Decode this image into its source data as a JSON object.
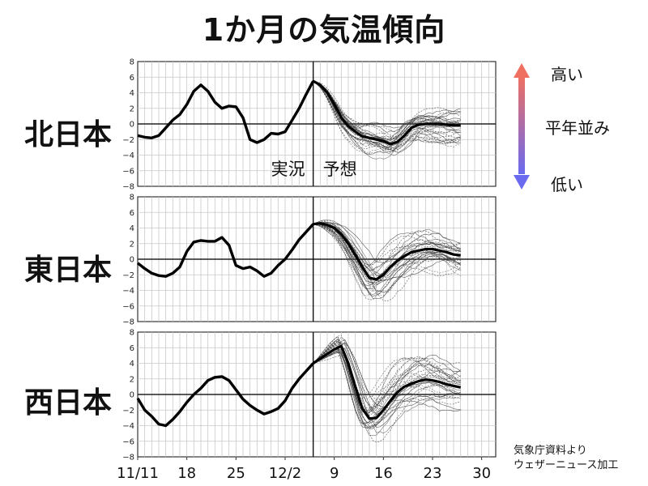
{
  "title": "1か月の気温傾向",
  "source_lines": [
    "気象庁資料より",
    "ウェザーニュース加工"
  ],
  "legend": {
    "high": "高い",
    "normal": "平年並み",
    "low": "低い",
    "gradient_top": "#f07060",
    "gradient_bottom": "#6a6af0"
  },
  "chart_data": {
    "type": "line",
    "x_days": [
      0,
      34
    ],
    "x_tick_days": [
      0,
      7,
      14,
      21,
      28,
      35,
      42,
      49
    ],
    "x_ticks": [
      "11/11",
      "18",
      "25",
      "12/2",
      "9",
      "16",
      "23",
      "30"
    ],
    "ylim": [
      -8,
      8
    ],
    "y_ticks": [
      "8",
      "6",
      "4",
      "2",
      "0",
      "−2",
      "−4",
      "−6",
      "−8"
    ],
    "forecast_start_day": 25,
    "annotations": {
      "observed": "実況",
      "forecast": "予想"
    },
    "panels": [
      {
        "region": "北日本",
        "ensemble_spread": 1.5,
        "observed": [
          [
            0,
            -1.5
          ],
          [
            1,
            -1.7
          ],
          [
            2,
            -1.8
          ],
          [
            3,
            -1.5
          ],
          [
            4,
            -0.5
          ],
          [
            5,
            0.5
          ],
          [
            6,
            1.2
          ],
          [
            7,
            2.5
          ],
          [
            8,
            4.2
          ],
          [
            9,
            5
          ],
          [
            10,
            4.2
          ],
          [
            11,
            2.8
          ],
          [
            12,
            2
          ],
          [
            13,
            2.3
          ],
          [
            14,
            2.2
          ],
          [
            15,
            0.8
          ],
          [
            16,
            -2
          ],
          [
            17,
            -2.4
          ],
          [
            18,
            -2
          ],
          [
            19,
            -1.2
          ],
          [
            20,
            -1.3
          ],
          [
            21,
            -1
          ],
          [
            22,
            0.5
          ],
          [
            23,
            2
          ],
          [
            24,
            3.8
          ],
          [
            25,
            5.5
          ]
        ],
        "forecast": [
          [
            25,
            5.5
          ],
          [
            26,
            5
          ],
          [
            27,
            4
          ],
          [
            28,
            2.5
          ],
          [
            29,
            0.8
          ],
          [
            30,
            -0.3
          ],
          [
            31,
            -1
          ],
          [
            32,
            -1.6
          ],
          [
            33,
            -1.8
          ],
          [
            34,
            -2
          ],
          [
            35,
            -2.2
          ],
          [
            36,
            -2.6
          ],
          [
            37,
            -2.3
          ],
          [
            38,
            -1.5
          ],
          [
            39,
            -0.5
          ],
          [
            40,
            -0.1
          ],
          [
            41,
            0
          ],
          [
            42,
            0
          ],
          [
            43,
            0
          ],
          [
            44,
            -0.1
          ],
          [
            45,
            -0.2
          ],
          [
            46,
            -0.2
          ]
        ]
      },
      {
        "region": "東日本",
        "ensemble_spread": 1.8,
        "observed": [
          [
            0,
            -0.5
          ],
          [
            1,
            -1.2
          ],
          [
            2,
            -1.8
          ],
          [
            3,
            -2.1
          ],
          [
            4,
            -2.2
          ],
          [
            5,
            -1.8
          ],
          [
            6,
            -1
          ],
          [
            7,
            1
          ],
          [
            8,
            2.2
          ],
          [
            9,
            2.4
          ],
          [
            10,
            2.3
          ],
          [
            11,
            2.3
          ],
          [
            12,
            2.8
          ],
          [
            13,
            1.8
          ],
          [
            14,
            -0.8
          ],
          [
            15,
            -1.2
          ],
          [
            16,
            -1
          ],
          [
            17,
            -1.5
          ],
          [
            18,
            -2.2
          ],
          [
            19,
            -1.8
          ],
          [
            20,
            -0.8
          ],
          [
            21,
            0
          ],
          [
            22,
            1.2
          ],
          [
            23,
            2.5
          ],
          [
            24,
            3.5
          ],
          [
            25,
            4.5
          ]
        ],
        "forecast": [
          [
            25,
            4.5
          ],
          [
            26,
            4.6
          ],
          [
            27,
            4.4
          ],
          [
            28,
            4
          ],
          [
            29,
            3.2
          ],
          [
            30,
            2
          ],
          [
            31,
            0.5
          ],
          [
            32,
            -1
          ],
          [
            33,
            -2.4
          ],
          [
            34,
            -2.6
          ],
          [
            35,
            -2
          ],
          [
            36,
            -1
          ],
          [
            37,
            -0.2
          ],
          [
            38,
            0.4
          ],
          [
            39,
            0.9
          ],
          [
            40,
            1.1
          ],
          [
            41,
            1.3
          ],
          [
            42,
            1.3
          ],
          [
            43,
            1.1
          ],
          [
            44,
            0.9
          ],
          [
            45,
            0.6
          ],
          [
            46,
            0.5
          ]
        ]
      },
      {
        "region": "西日本",
        "ensemble_spread": 2.0,
        "observed": [
          [
            0,
            -0.5
          ],
          [
            1,
            -2
          ],
          [
            2,
            -2.8
          ],
          [
            3,
            -3.8
          ],
          [
            4,
            -4
          ],
          [
            5,
            -3.2
          ],
          [
            6,
            -2.2
          ],
          [
            7,
            -1
          ],
          [
            8,
            0
          ],
          [
            9,
            0.8
          ],
          [
            10,
            1.8
          ],
          [
            11,
            2.2
          ],
          [
            12,
            2.3
          ],
          [
            13,
            1.8
          ],
          [
            14,
            0.6
          ],
          [
            15,
            -0.6
          ],
          [
            16,
            -1.4
          ],
          [
            17,
            -2
          ],
          [
            18,
            -2.5
          ],
          [
            19,
            -2.2
          ],
          [
            20,
            -1.8
          ],
          [
            21,
            -0.8
          ],
          [
            22,
            0.8
          ],
          [
            23,
            2
          ],
          [
            24,
            3
          ],
          [
            25,
            4
          ]
        ],
        "forecast": [
          [
            25,
            4
          ],
          [
            26,
            4.6
          ],
          [
            27,
            5.2
          ],
          [
            28,
            5.8
          ],
          [
            29,
            6.2
          ],
          [
            30,
            4
          ],
          [
            31,
            1
          ],
          [
            32,
            -1.8
          ],
          [
            33,
            -3.1
          ],
          [
            34,
            -3
          ],
          [
            35,
            -2
          ],
          [
            36,
            -0.8
          ],
          [
            37,
            0.3
          ],
          [
            38,
            1
          ],
          [
            39,
            1.4
          ],
          [
            40,
            1.7
          ],
          [
            41,
            1.9
          ],
          [
            42,
            1.8
          ],
          [
            43,
            1.6
          ],
          [
            44,
            1.3
          ],
          [
            45,
            1.1
          ],
          [
            46,
            0.9
          ]
        ]
      }
    ]
  }
}
